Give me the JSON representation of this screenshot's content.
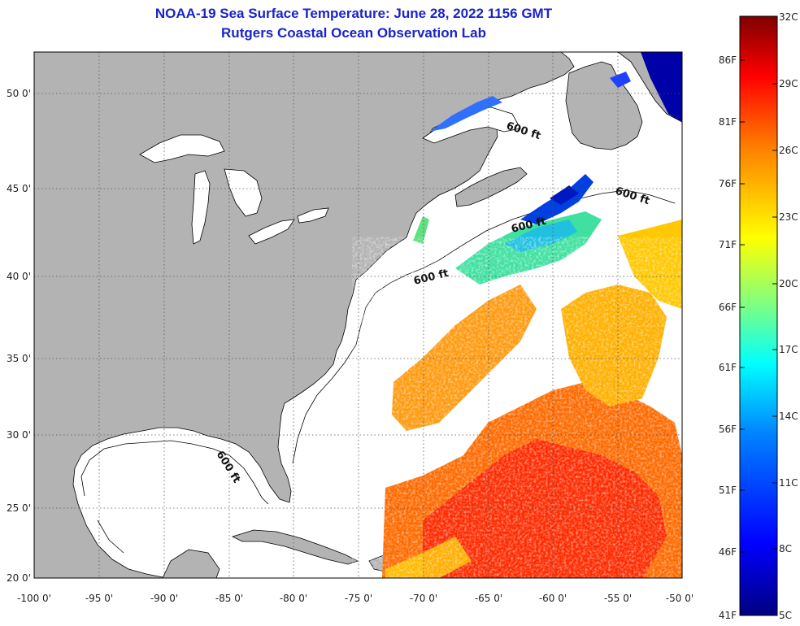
{
  "header": {
    "title": "NOAA-19 Sea Surface Temperature:  June 28, 2022 1156 GMT",
    "subtitle": "Rutgers Coastal Ocean Observation Lab"
  },
  "map": {
    "lon_range": [
      -100,
      -50
    ],
    "lat_range": [
      20,
      52.5
    ],
    "lon_ticks": [
      "-100 0'",
      "-95 0'",
      "-90 0'",
      "-85 0'",
      "-80 0'",
      "-75 0'",
      "-70 0'",
      "-65 0'",
      "-60 0'",
      "-55 0'",
      "-50 0'"
    ],
    "lat_ticks": [
      "20 0'",
      "25 0'",
      "30 0'",
      "35 0'",
      "40 0'",
      "45 0'",
      "50 0'"
    ],
    "grid": true,
    "contour_labels": [
      "600 ft",
      "600 ft",
      "600 ft",
      "600 ft",
      "600 ft"
    ],
    "colors": {
      "land": "#b3b3b3",
      "ocean_no_data": "#ffffff",
      "grid": "#555555"
    }
  },
  "colorbar": {
    "celsius_labels": [
      "32C",
      "29C",
      "26C",
      "23C",
      "20C",
      "17C",
      "14C",
      "11C",
      "8C",
      "5C"
    ],
    "fahrenheit_labels": [
      "86F",
      "81F",
      "76F",
      "71F",
      "66F",
      "61F",
      "56F",
      "51F",
      "46F",
      "41F"
    ],
    "range_c": [
      5,
      32
    ],
    "colors": [
      "#00007f",
      "#0000ff",
      "#0080ff",
      "#00ffff",
      "#80ff80",
      "#ffff00",
      "#ff8000",
      "#ff0000",
      "#7f0000"
    ]
  }
}
